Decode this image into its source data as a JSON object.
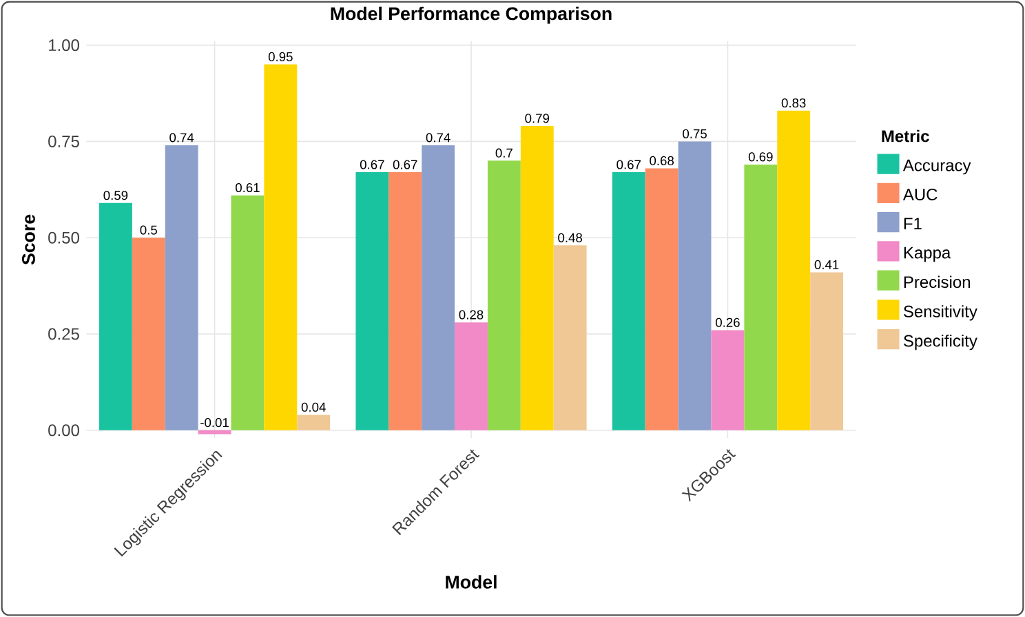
{
  "chart_data": {
    "type": "bar",
    "title": "Model Performance Comparison",
    "xlabel": "Model",
    "ylabel": "Score",
    "legend_title": "Metric",
    "categories": [
      "Logistic Regression",
      "Random Forest",
      "XGBoost"
    ],
    "series": [
      {
        "name": "Accuracy",
        "color": "#19c3a0",
        "values": [
          0.59,
          0.67,
          0.67
        ]
      },
      {
        "name": "AUC",
        "color": "#fc8d62",
        "values": [
          0.5,
          0.67,
          0.68
        ]
      },
      {
        "name": "F1",
        "color": "#8da0cb",
        "values": [
          0.74,
          0.74,
          0.75
        ]
      },
      {
        "name": "Kappa",
        "color": "#f18ac6",
        "values": [
          -0.01,
          0.28,
          0.26
        ]
      },
      {
        "name": "Precision",
        "color": "#92d84c",
        "values": [
          0.61,
          0.7,
          0.69
        ]
      },
      {
        "name": "Sensitivity",
        "color": "#ffd700",
        "values": [
          0.95,
          0.79,
          0.83
        ]
      },
      {
        "name": "Specificity",
        "color": "#f0c896",
        "values": [
          0.04,
          0.48,
          0.41
        ]
      }
    ],
    "ylim": [
      -0.02,
      1.01
    ],
    "yticks": [
      {
        "value": 0,
        "label": "0.00"
      },
      {
        "value": 0.25,
        "label": "0.25"
      },
      {
        "value": 0.5,
        "label": "0.50"
      },
      {
        "value": 0.75,
        "label": "0.75"
      },
      {
        "value": 1,
        "label": "1.00"
      }
    ],
    "grid": true,
    "legend": "right",
    "data_labels": true
  }
}
